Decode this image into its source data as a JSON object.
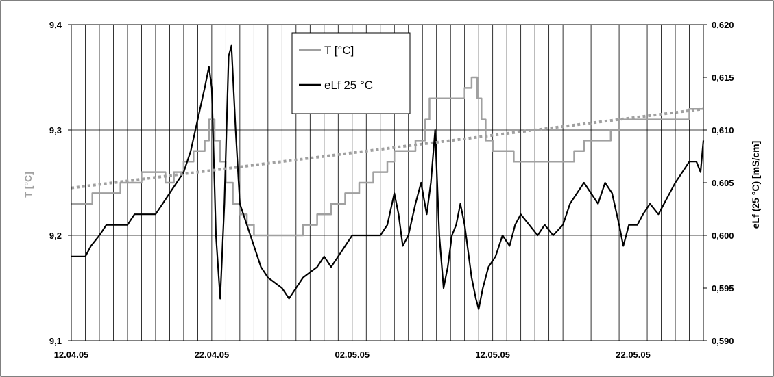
{
  "chart_data": {
    "type": "line",
    "title": "",
    "xlabel": "",
    "ylabel": "T [°C]",
    "y2label": "eLf (25 °C) [mS/cm]",
    "x_range": [
      "2005-04-12",
      "2005-05-27"
    ],
    "x_ticks": [
      "12.04.05",
      "22.04.05",
      "02.05.05",
      "12.05.05",
      "22.05.05"
    ],
    "y_ticks": [
      "9,1",
      "9,2",
      "9,3",
      "9,4"
    ],
    "y2_ticks": [
      "0,590",
      "0,595",
      "0,600",
      "0,605",
      "0,610",
      "0,615",
      "0,620"
    ],
    "ylim": [
      9.1,
      9.4
    ],
    "y2lim": [
      0.59,
      0.62
    ],
    "grid": "vertical daily lines, horizontal at major ticks",
    "legend_position": "top-center",
    "colors": {
      "temperature": "#a0a0a0",
      "conductivity": "#000000",
      "trend": "#a0a0a0"
    },
    "series": [
      {
        "name": "T [°C]",
        "axis": "left",
        "style": "step",
        "points": [
          [
            "2005-04-12",
            9.23
          ],
          [
            "2005-04-13",
            9.23
          ],
          [
            "2005-04-13.5",
            9.24
          ],
          [
            "2005-04-15",
            9.24
          ],
          [
            "2005-04-15.5",
            9.25
          ],
          [
            "2005-04-16.5",
            9.25
          ],
          [
            "2005-04-17",
            9.26
          ],
          [
            "2005-04-18",
            9.26
          ],
          [
            "2005-04-18.7",
            9.25
          ],
          [
            "2005-04-19.3",
            9.26
          ],
          [
            "2005-04-20",
            9.27
          ],
          [
            "2005-04-20.7",
            9.28
          ],
          [
            "2005-04-21.5",
            9.29
          ],
          [
            "2005-04-21.8",
            9.31
          ],
          [
            "2005-04-22.2",
            9.29
          ],
          [
            "2005-04-22.6",
            9.27
          ],
          [
            "2005-04-23.0",
            9.25
          ],
          [
            "2005-04-23.5",
            9.23
          ],
          [
            "2005-04-24",
            9.22
          ],
          [
            "2005-04-24.5",
            9.21
          ],
          [
            "2005-04-25",
            9.2
          ],
          [
            "2005-04-26",
            9.2
          ],
          [
            "2005-04-28",
            9.2
          ],
          [
            "2005-04-28.5",
            9.21
          ],
          [
            "2005-04-29.5",
            9.22
          ],
          [
            "2005-04-30.5",
            9.23
          ],
          [
            "2005-05-01.5",
            9.24
          ],
          [
            "2005-05-02.5",
            9.25
          ],
          [
            "2005-05-03.5",
            9.26
          ],
          [
            "2005-05-04.5",
            9.27
          ],
          [
            "2005-05-05",
            9.28
          ],
          [
            "2005-05-06.5",
            9.29
          ],
          [
            "2005-05-07.2",
            9.31
          ],
          [
            "2005-05-07.5",
            9.33
          ],
          [
            "2005-05-09.5",
            9.33
          ],
          [
            "2005-05-10",
            9.34
          ],
          [
            "2005-05-10.5",
            9.35
          ],
          [
            "2005-05-10.9",
            9.33
          ],
          [
            "2005-05-11.2",
            9.31
          ],
          [
            "2005-05-11.5",
            9.29
          ],
          [
            "2005-05-12",
            9.28
          ],
          [
            "2005-05-13",
            9.28
          ],
          [
            "2005-05-13.5",
            9.27
          ],
          [
            "2005-05-17.5",
            9.27
          ],
          [
            "2005-05-17.8",
            9.28
          ],
          [
            "2005-05-18.5",
            9.29
          ],
          [
            "2005-05-20",
            9.29
          ],
          [
            "2005-05-20.4",
            9.3
          ],
          [
            "2005-05-21",
            9.31
          ],
          [
            "2005-05-25.5",
            9.31
          ],
          [
            "2005-05-26",
            9.32
          ],
          [
            "2005-05-27",
            9.32
          ]
        ]
      },
      {
        "name": "eLf 25 °C",
        "axis": "right",
        "style": "line",
        "points": [
          [
            "2005-04-12",
            0.598
          ],
          [
            "2005-04-13",
            0.598
          ],
          [
            "2005-04-13.4",
            0.599
          ],
          [
            "2005-04-14",
            0.6
          ],
          [
            "2005-04-14.5",
            0.601
          ],
          [
            "2005-04-16",
            0.601
          ],
          [
            "2005-04-16.5",
            0.602
          ],
          [
            "2005-04-18",
            0.602
          ],
          [
            "2005-04-18.5",
            0.603
          ],
          [
            "2005-04-19",
            0.604
          ],
          [
            "2005-04-19.5",
            0.605
          ],
          [
            "2005-04-20",
            0.606
          ],
          [
            "2005-04-20.5",
            0.608
          ],
          [
            "2005-04-21",
            0.611
          ],
          [
            "2005-04-21.5",
            0.614
          ],
          [
            "2005-04-21.8",
            0.616
          ],
          [
            "2005-04-22.0",
            0.614
          ],
          [
            "2005-04-22.3",
            0.6
          ],
          [
            "2005-04-22.6",
            0.594
          ],
          [
            "2005-04-22.9",
            0.603
          ],
          [
            "2005-04-23.2",
            0.617
          ],
          [
            "2005-04-23.4",
            0.618
          ],
          [
            "2005-04-23.7",
            0.61
          ],
          [
            "2005-04-24",
            0.603
          ],
          [
            "2005-04-24.5",
            0.601
          ],
          [
            "2005-04-25",
            0.599
          ],
          [
            "2005-04-25.5",
            0.597
          ],
          [
            "2005-04-26",
            0.596
          ],
          [
            "2005-04-27",
            0.595
          ],
          [
            "2005-04-27.5",
            0.594
          ],
          [
            "2005-04-28",
            0.595
          ],
          [
            "2005-04-28.5",
            0.596
          ],
          [
            "2005-04-29.5",
            0.597
          ],
          [
            "2005-04-30",
            0.598
          ],
          [
            "2005-04-30.5",
            0.597
          ],
          [
            "2005-05-01",
            0.598
          ],
          [
            "2005-05-01.5",
            0.599
          ],
          [
            "2005-05-02",
            0.6
          ],
          [
            "2005-05-04",
            0.6
          ],
          [
            "2005-05-04.5",
            0.601
          ],
          [
            "2005-05-05",
            0.604
          ],
          [
            "2005-05-05.3",
            0.602
          ],
          [
            "2005-05-05.6",
            0.599
          ],
          [
            "2005-05-06",
            0.6
          ],
          [
            "2005-05-06.5",
            0.603
          ],
          [
            "2005-05-06.9",
            0.605
          ],
          [
            "2005-05-07.3",
            0.602
          ],
          [
            "2005-05-07.6",
            0.605
          ],
          [
            "2005-05-07.9",
            0.61
          ],
          [
            "2005-05-08.2",
            0.6
          ],
          [
            "2005-05-08.5",
            0.595
          ],
          [
            "2005-05-08.8",
            0.597
          ],
          [
            "2005-05-09.1",
            0.6
          ],
          [
            "2005-05-09.4",
            0.601
          ],
          [
            "2005-05-09.7",
            0.603
          ],
          [
            "2005-05-10.0",
            0.601
          ],
          [
            "2005-05-10.2",
            0.599
          ],
          [
            "2005-05-10.5",
            0.596
          ],
          [
            "2005-05-10.8",
            0.594
          ],
          [
            "2005-05-11.0",
            0.593
          ],
          [
            "2005-05-11.3",
            0.595
          ],
          [
            "2005-05-11.7",
            0.597
          ],
          [
            "2005-05-12.2",
            0.598
          ],
          [
            "2005-05-12.7",
            0.6
          ],
          [
            "2005-05-13.2",
            0.599
          ],
          [
            "2005-05-13.6",
            0.601
          ],
          [
            "2005-05-14",
            0.602
          ],
          [
            "2005-05-14.6",
            0.601
          ],
          [
            "2005-05-15.2",
            0.6
          ],
          [
            "2005-05-15.7",
            0.601
          ],
          [
            "2005-05-16.3",
            0.6
          ],
          [
            "2005-05-17",
            0.601
          ],
          [
            "2005-05-17.5",
            0.603
          ],
          [
            "2005-05-18",
            0.604
          ],
          [
            "2005-05-18.5",
            0.605
          ],
          [
            "2005-05-19",
            0.604
          ],
          [
            "2005-05-19.5",
            0.603
          ],
          [
            "2005-05-20",
            0.605
          ],
          [
            "2005-05-20.5",
            0.604
          ],
          [
            "2005-05-21",
            0.601
          ],
          [
            "2005-05-21.3",
            0.599
          ],
          [
            "2005-05-21.7",
            0.601
          ],
          [
            "2005-05-22.3",
            0.601
          ],
          [
            "2005-05-22.7",
            0.602
          ],
          [
            "2005-05-23.2",
            0.603
          ],
          [
            "2005-05-23.8",
            0.602
          ],
          [
            "2005-05-24.2",
            0.603
          ],
          [
            "2005-05-24.6",
            0.604
          ],
          [
            "2005-05-25",
            0.605
          ],
          [
            "2005-05-25.5",
            0.606
          ],
          [
            "2005-05-26",
            0.607
          ],
          [
            "2005-05-26.5",
            0.607
          ],
          [
            "2005-05-26.8",
            0.606
          ],
          [
            "2005-05-27",
            0.609
          ]
        ]
      },
      {
        "name": "",
        "axis": "left",
        "style": "dotted-trend",
        "points": [
          [
            "2005-04-12",
            9.245
          ],
          [
            "2005-05-27",
            9.32
          ]
        ]
      }
    ]
  }
}
